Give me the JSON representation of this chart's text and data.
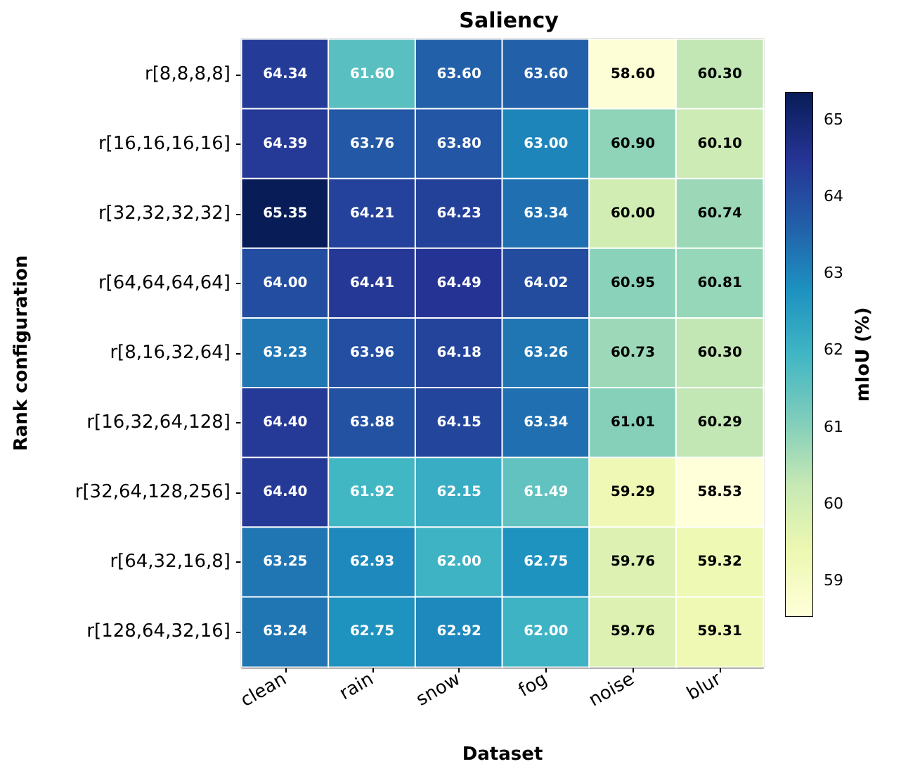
{
  "chart_data": {
    "type": "heatmap",
    "title": "Saliency",
    "xlabel": "Dataset",
    "ylabel": "Rank configuration",
    "clabel": "mIoU (%)",
    "categories": [
      "clean",
      "rain",
      "snow",
      "fog",
      "noise",
      "blur"
    ],
    "y_categories": [
      "r[8,8,8,8]",
      "r[16,16,16,16]",
      "r[32,32,32,32]",
      "r[64,64,64,64]",
      "r[8,16,32,64]",
      "r[16,32,64,128]",
      "r[32,64,128,256]",
      "r[64,32,16,8]",
      "r[128,64,32,16]"
    ],
    "cells": [
      [
        64.34,
        61.6,
        63.6,
        63.6,
        58.6,
        60.3
      ],
      [
        64.39,
        63.76,
        63.8,
        63.0,
        60.9,
        60.1
      ],
      [
        65.35,
        64.21,
        64.23,
        63.34,
        60.0,
        60.74
      ],
      [
        64.0,
        64.41,
        64.49,
        64.02,
        60.95,
        60.81
      ],
      [
        63.23,
        63.96,
        64.18,
        63.26,
        60.73,
        60.3
      ],
      [
        64.4,
        63.88,
        64.15,
        63.34,
        61.01,
        60.29
      ],
      [
        64.4,
        61.92,
        62.15,
        61.49,
        59.29,
        58.53
      ],
      [
        63.25,
        62.93,
        62.0,
        62.75,
        59.76,
        59.32
      ],
      [
        63.24,
        62.75,
        62.92,
        62.0,
        59.76,
        59.31
      ]
    ],
    "cell_labels": [
      [
        "64.34",
        "61.60",
        "63.60",
        "63.60",
        "58.60",
        "60.30"
      ],
      [
        "64.39",
        "63.76",
        "63.80",
        "63.00",
        "60.90",
        "60.10"
      ],
      [
        "65.35",
        "64.21",
        "64.23",
        "63.34",
        "60.00",
        "60.74"
      ],
      [
        "64.00",
        "64.41",
        "64.49",
        "64.02",
        "60.95",
        "60.81"
      ],
      [
        "63.23",
        "63.96",
        "64.18",
        "63.26",
        "60.73",
        "60.30"
      ],
      [
        "64.40",
        "63.88",
        "64.15",
        "63.34",
        "61.01",
        "60.29"
      ],
      [
        "64.40",
        "61.92",
        "62.15",
        "61.49",
        "59.29",
        "58.53"
      ],
      [
        "63.25",
        "62.93",
        "62.00",
        "62.75",
        "59.76",
        "59.32"
      ],
      [
        "63.24",
        "62.75",
        "62.92",
        "62.00",
        "59.76",
        "59.31"
      ]
    ],
    "clim": [
      58.53,
      65.35
    ],
    "cticks": [
      59,
      60,
      61,
      62,
      63,
      64,
      65
    ]
  }
}
